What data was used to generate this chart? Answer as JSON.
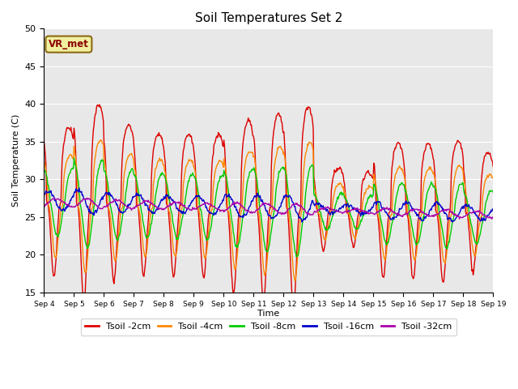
{
  "title": "Soil Temperatures Set 2",
  "xlabel": "Time",
  "ylabel": "Soil Temperature (C)",
  "ylim": [
    15,
    50
  ],
  "yticks": [
    15,
    20,
    25,
    30,
    35,
    40,
    45,
    50
  ],
  "x_labels": [
    "Sep 4",
    "Sep 5",
    "Sep 6",
    "Sep 7",
    "Sep 8",
    "Sep 9",
    "Sep 10",
    "Sep 11",
    "Sep 12",
    "Sep 13",
    "Sep 14",
    "Sep 15",
    "Sep 16",
    "Sep 17",
    "Sep 18",
    "Sep 19"
  ],
  "annotation_text": "VR_met",
  "colors": {
    "T2": "#dd0000",
    "T4": "#ff8800",
    "T8": "#00cc00",
    "T16": "#0000cc",
    "T32": "#aa00aa"
  },
  "bg_color": "#e8e8e8",
  "linewidth": 1.0,
  "legend_labels": [
    "Tsoil -2cm",
    "Tsoil -4cm",
    "Tsoil -8cm",
    "Tsoil -16cm",
    "Tsoil -32cm"
  ]
}
